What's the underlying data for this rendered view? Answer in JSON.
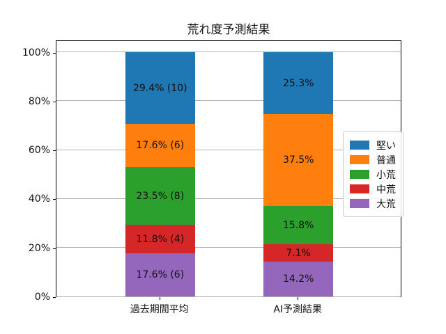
{
  "chart_data": {
    "type": "bar",
    "stacked": true,
    "title": "荒れ度予測結果",
    "categories": [
      "過去期間平均",
      "AI予測結果"
    ],
    "series": [
      {
        "name": "大荒",
        "color": "#9467bd",
        "values": [
          17.6,
          14.2
        ],
        "labels": [
          "17.6% (6)",
          "14.2%"
        ]
      },
      {
        "name": "中荒",
        "color": "#d62728",
        "values": [
          11.8,
          7.1
        ],
        "labels": [
          "11.8% (4)",
          "7.1%"
        ]
      },
      {
        "name": "小荒",
        "color": "#2ca02c",
        "values": [
          23.5,
          15.8
        ],
        "labels": [
          "23.5% (8)",
          "15.8%"
        ]
      },
      {
        "name": "普通",
        "color": "#ff7f0e",
        "values": [
          17.6,
          37.5
        ],
        "labels": [
          "17.6% (6)",
          "37.5%"
        ]
      },
      {
        "name": "堅い",
        "color": "#1f77b4",
        "values": [
          29.4,
          25.3
        ],
        "labels": [
          "29.4% (10)",
          "25.3%"
        ]
      }
    ],
    "legend": {
      "position": "right",
      "entries": [
        "堅い",
        "普通",
        "小荒",
        "中荒",
        "大荒"
      ]
    },
    "y_ticks": [
      {
        "value": 0,
        "label": "0%"
      },
      {
        "value": 20,
        "label": "20%"
      },
      {
        "value": 40,
        "label": "40%"
      },
      {
        "value": 60,
        "label": "60%"
      },
      {
        "value": 80,
        "label": "80%"
      },
      {
        "value": 100,
        "label": "100%"
      }
    ],
    "ylim": [
      0,
      105
    ],
    "grid": true,
    "colors": {
      "grid": "#b0b0b0",
      "spine": "#000000",
      "text": "#111111",
      "background": "#ffffff"
    }
  }
}
